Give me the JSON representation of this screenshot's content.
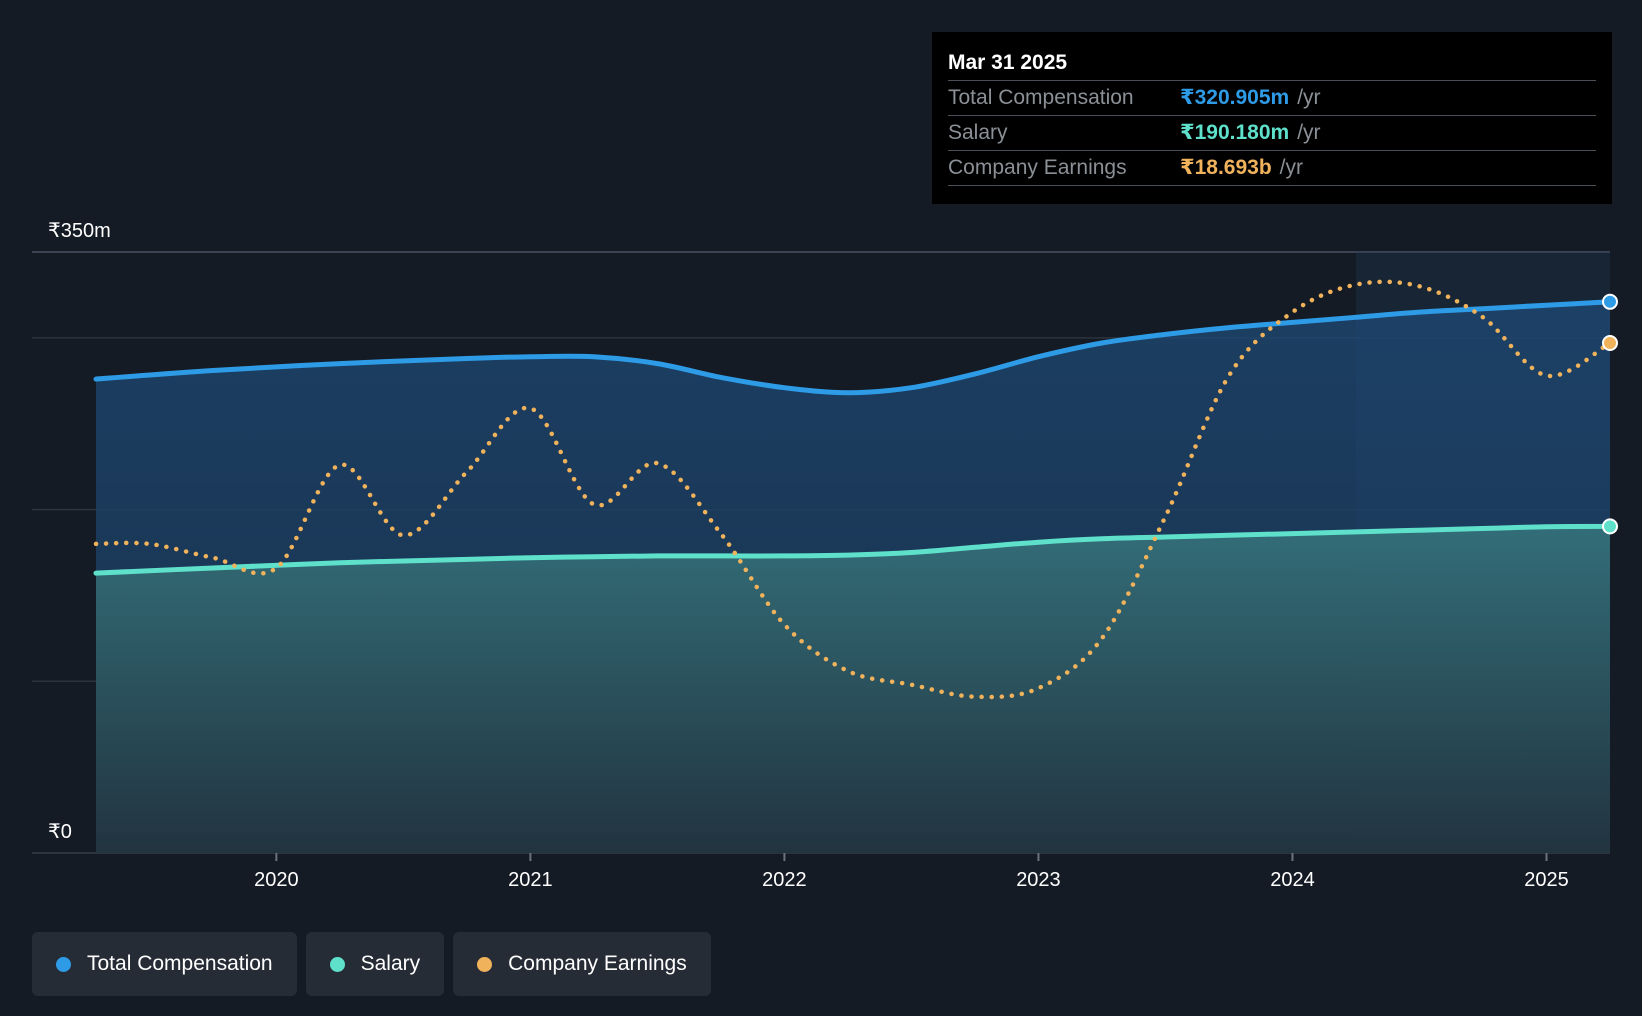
{
  "tooltip": {
    "date": "Mar 31 2025",
    "rows": [
      {
        "label": "Total Compensation",
        "value": "₹320.905m",
        "unit": "/yr",
        "color": "#2e9be6"
      },
      {
        "label": "Salary",
        "value": "₹190.180m",
        "unit": "/yr",
        "color": "#5ee0cb"
      },
      {
        "label": "Company Earnings",
        "value": "₹18.693b",
        "unit": "/yr",
        "color": "#f0b35c"
      }
    ]
  },
  "legend": [
    {
      "label": "Total Compensation",
      "color": "#2e9be6"
    },
    {
      "label": "Salary",
      "color": "#5ee0cb"
    },
    {
      "label": "Company Earnings",
      "color": "#f0b35c"
    }
  ],
  "chart_data": {
    "type": "area",
    "title": "",
    "xlabel": "",
    "ylabel": "",
    "ylim": [
      0,
      350
    ],
    "xlim": [
      2019.29,
      2025.25
    ],
    "y_tick_labels": [
      {
        "value": 350,
        "label": "₹350m"
      },
      {
        "value": 0,
        "label": "₹0"
      }
    ],
    "gridlines": [
      0,
      100,
      200,
      300,
      350
    ],
    "x_ticks": [
      2020,
      2021,
      2022,
      2023,
      2024,
      2025
    ],
    "highlight_from": 2024.25,
    "series": [
      {
        "name": "Total Compensation",
        "unit": "₹m",
        "style": "area-line",
        "color": "#2e9be6",
        "x": [
          2019.25,
          2019.75,
          2020.25,
          2020.75,
          2021.0,
          2021.25,
          2021.5,
          2021.75,
          2022.0,
          2022.25,
          2022.5,
          2022.75,
          2023.0,
          2023.25,
          2023.5,
          2023.75,
          2024.0,
          2024.25,
          2024.5,
          2024.75,
          2025.0,
          2025.25
        ],
        "values": [
          276,
          281,
          285,
          288,
          289,
          289,
          285,
          277,
          271,
          268,
          271,
          279,
          289,
          297,
          302,
          306,
          309,
          312,
          315,
          317,
          319,
          321
        ]
      },
      {
        "name": "Salary",
        "unit": "₹m",
        "style": "area-line",
        "color": "#5ee0cb",
        "x": [
          2019.25,
          2019.75,
          2020.25,
          2020.75,
          2021.0,
          2021.25,
          2021.5,
          2021.75,
          2022.0,
          2022.25,
          2022.5,
          2022.75,
          2023.0,
          2023.25,
          2023.5,
          2023.75,
          2024.0,
          2024.25,
          2024.5,
          2024.75,
          2025.0,
          2025.25
        ],
        "values": [
          163,
          166,
          169,
          171,
          172,
          172.5,
          173,
          173,
          173,
          173.5,
          175,
          178,
          181,
          183,
          184,
          185,
          186,
          187,
          188,
          189,
          190,
          190.2
        ]
      },
      {
        "name": "Company Earnings",
        "unit": "₹m equiv.",
        "style": "dotted-line",
        "color": "#f0b35c",
        "x": [
          2019.25,
          2019.5,
          2019.75,
          2020.0,
          2020.25,
          2020.5,
          2020.75,
          2021.0,
          2021.25,
          2021.5,
          2021.75,
          2022.0,
          2022.25,
          2022.5,
          2022.75,
          2023.0,
          2023.25,
          2023.5,
          2023.75,
          2024.0,
          2024.25,
          2024.5,
          2024.75,
          2025.0,
          2025.25
        ],
        "values": [
          180,
          180,
          172,
          166,
          226,
          185,
          222,
          259,
          203,
          227,
          186,
          133,
          106,
          98,
          91,
          96,
          125,
          196,
          278,
          315,
          331,
          330,
          312,
          278,
          297
        ]
      }
    ]
  }
}
